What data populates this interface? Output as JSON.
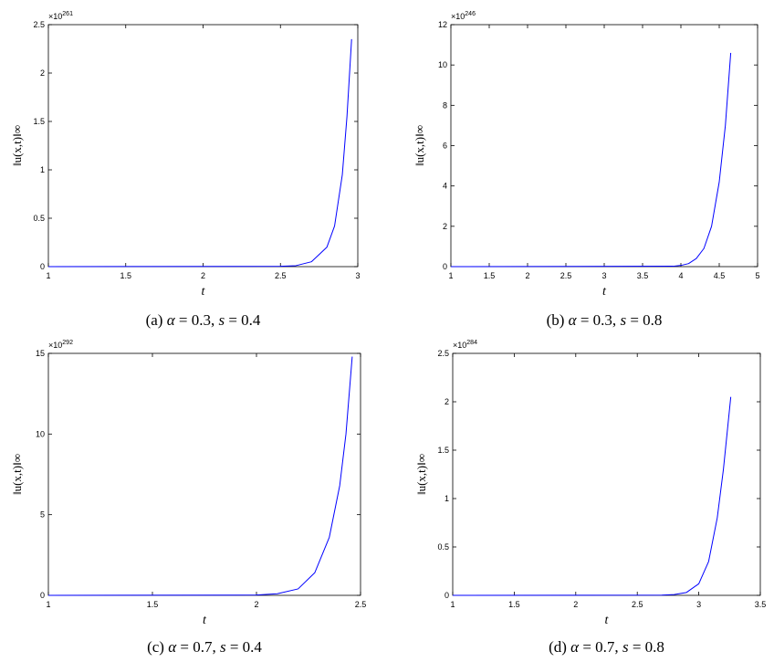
{
  "chart_data": [
    {
      "type": "line",
      "caption": {
        "label": "(a) ",
        "alpha_sym": "α",
        "alpha_val": " = 0.3, ",
        "s_sym": "s",
        "s_val": " = 0.4"
      },
      "xlabel": "t",
      "ylabel": "‖u(x,t)‖∞",
      "exponent": "261",
      "xlim": [
        1,
        3
      ],
      "ylim": [
        0,
        2.5
      ],
      "xticks": [
        "1",
        "1.5",
        "2",
        "2.5",
        "3"
      ],
      "yticks": [
        "0",
        "0.5",
        "1",
        "1.5",
        "2",
        "2.5"
      ],
      "series": [
        {
          "color": "#0000ff",
          "x": [
            1.0,
            2.5,
            2.6,
            2.7,
            2.8,
            2.85,
            2.9,
            2.93,
            2.96
          ],
          "y": [
            0,
            0.003,
            0.01,
            0.05,
            0.2,
            0.42,
            0.95,
            1.55,
            2.35
          ]
        }
      ]
    },
    {
      "type": "line",
      "caption": {
        "label": "(b) ",
        "alpha_sym": "α",
        "alpha_val": " = 0.3, ",
        "s_sym": "s",
        "s_val": " = 0.8"
      },
      "xlabel": "t",
      "ylabel": "‖u(x,t)‖∞",
      "exponent": "246",
      "xlim": [
        1,
        5
      ],
      "ylim": [
        0,
        12
      ],
      "xticks": [
        "1",
        "1.5",
        "2",
        "2.5",
        "3",
        "3.5",
        "4",
        "4.5",
        "5"
      ],
      "yticks": [
        "0",
        "2",
        "4",
        "6",
        "8",
        "10",
        "12"
      ],
      "series": [
        {
          "color": "#0000ff",
          "x": [
            1.0,
            3.9,
            4.0,
            4.1,
            4.2,
            4.3,
            4.4,
            4.5,
            4.58,
            4.65
          ],
          "y": [
            0,
            0.02,
            0.06,
            0.15,
            0.4,
            0.9,
            2.0,
            4.2,
            7.0,
            10.6
          ]
        }
      ]
    },
    {
      "type": "line",
      "caption": {
        "label": "(c) ",
        "alpha_sym": "α",
        "alpha_val": " = 0.7, ",
        "s_sym": "s",
        "s_val": " = 0.4"
      },
      "xlabel": "t",
      "ylabel": "‖u(x,t)‖∞",
      "exponent": "292",
      "xlim": [
        1,
        2.5
      ],
      "ylim": [
        0,
        15
      ],
      "xticks": [
        "1",
        "1.5",
        "2",
        "2.5"
      ],
      "yticks": [
        "0",
        "5",
        "10",
        "15"
      ],
      "series": [
        {
          "color": "#0000ff",
          "x": [
            1.0,
            2.0,
            2.1,
            2.2,
            2.28,
            2.35,
            2.4,
            2.43,
            2.46
          ],
          "y": [
            0,
            0.02,
            0.1,
            0.4,
            1.4,
            3.6,
            6.8,
            10.0,
            14.8
          ]
        }
      ]
    },
    {
      "type": "line",
      "caption": {
        "label": "(d) ",
        "alpha_sym": "α",
        "alpha_val": " = 0.7, ",
        "s_sym": "s",
        "s_val": " = 0.8"
      },
      "xlabel": "t",
      "ylabel": "‖u(x,t)‖∞",
      "exponent": "284",
      "xlim": [
        1,
        3.5
      ],
      "ylim": [
        0,
        2.5
      ],
      "xticks": [
        "1",
        "1.5",
        "2",
        "2.5",
        "3",
        "3.5"
      ],
      "yticks": [
        "0",
        "0.5",
        "1",
        "1.5",
        "2",
        "2.5"
      ],
      "series": [
        {
          "color": "#0000ff",
          "x": [
            1.0,
            2.7,
            2.8,
            2.9,
            3.0,
            3.08,
            3.15,
            3.2,
            3.26
          ],
          "y": [
            0,
            0.002,
            0.008,
            0.03,
            0.12,
            0.35,
            0.8,
            1.3,
            2.05
          ]
        }
      ]
    }
  ]
}
